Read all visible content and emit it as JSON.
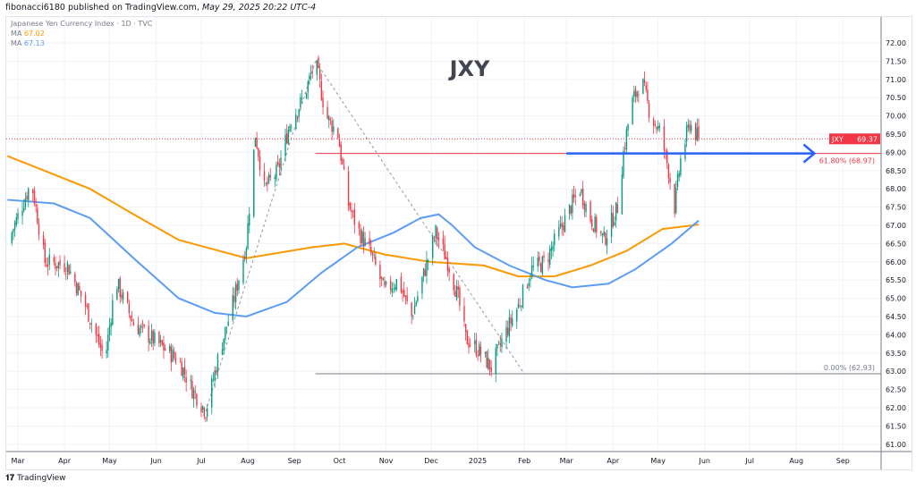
{
  "header": {
    "author": "fibonacci6180",
    "published": "published on TradingView.com,",
    "date": "May 29, 2025 20:22 UTC-4"
  },
  "legend": {
    "symbol_line": "Japanese Yen Currency Index · 1D · TVC",
    "ma1_label": "MA",
    "ma1_value": "67.02",
    "ma2_label": "MA",
    "ma2_value": "67.13"
  },
  "colors": {
    "up": "#089981",
    "down": "#f23645",
    "ma_orange": "#ff9800",
    "ma_blue": "#5b9cf6",
    "arrow": "#2962ff",
    "fib": "#f23645"
  },
  "footer": {
    "brand": "TradingView"
  },
  "chart_data": {
    "type": "candlestick",
    "title": "JXY",
    "time_unit": "days since 2024-03-01",
    "ylim": [
      60.75,
      72.5
    ],
    "yticks": [
      "61.00",
      "61.50",
      "62.00",
      "62.50",
      "63.00",
      "63.50",
      "64.00",
      "64.50",
      "65.00",
      "65.50",
      "66.00",
      "66.50",
      "67.00",
      "67.50",
      "68.00",
      "68.50",
      "69.00",
      "69.50",
      "70.00",
      "70.50",
      "71.00",
      "71.50",
      "72.00"
    ],
    "xticks": [
      {
        "t": 0,
        "label": "Mar"
      },
      {
        "t": 31,
        "label": "Apr"
      },
      {
        "t": 61,
        "label": "May"
      },
      {
        "t": 92,
        "label": "Jun"
      },
      {
        "t": 122,
        "label": "Jul"
      },
      {
        "t": 153,
        "label": "Aug"
      },
      {
        "t": 184,
        "label": "Sep"
      },
      {
        "t": 214,
        "label": "Oct"
      },
      {
        "t": 245,
        "label": "Nov"
      },
      {
        "t": 275,
        "label": "Dec"
      },
      {
        "t": 306,
        "label": "2025"
      },
      {
        "t": 337,
        "label": "Feb"
      },
      {
        "t": 365,
        "label": "Mar"
      },
      {
        "t": 396,
        "label": "Apr"
      },
      {
        "t": 426,
        "label": "May"
      },
      {
        "t": 457,
        "label": "Jun"
      },
      {
        "t": 487,
        "label": "Jul"
      },
      {
        "t": 518,
        "label": "Aug"
      },
      {
        "t": 549,
        "label": "Sep"
      }
    ],
    "price_path": [
      [
        -7,
        66.5
      ],
      [
        9,
        68.2
      ],
      [
        18,
        66.0
      ],
      [
        33,
        65.9
      ],
      [
        45,
        64.8
      ],
      [
        58,
        63.3
      ],
      [
        65,
        65.5
      ],
      [
        77,
        64.3
      ],
      [
        92,
        63.8
      ],
      [
        107,
        63.3
      ],
      [
        116,
        62.5
      ],
      [
        125,
        61.9
      ],
      [
        134,
        63.5
      ],
      [
        144,
        65.0
      ],
      [
        152,
        66.5
      ],
      [
        158,
        69.5
      ],
      [
        164,
        68.0
      ],
      [
        173,
        68.5
      ],
      [
        181,
        69.8
      ],
      [
        190,
        70.5
      ],
      [
        198,
        71.5
      ],
      [
        205,
        70.0
      ],
      [
        213,
        69.5
      ],
      [
        219,
        67.7
      ],
      [
        226,
        66.9
      ],
      [
        235,
        66.2
      ],
      [
        244,
        65.2
      ],
      [
        253,
        65.5
      ],
      [
        262,
        64.5
      ],
      [
        271,
        65.8
      ],
      [
        278,
        66.8
      ],
      [
        286,
        66.0
      ],
      [
        293,
        65.0
      ],
      [
        298,
        63.9
      ],
      [
        306,
        63.6
      ],
      [
        315,
        63.1
      ],
      [
        324,
        64.0
      ],
      [
        333,
        64.8
      ],
      [
        342,
        65.8
      ],
      [
        351,
        66.0
      ],
      [
        360,
        66.8
      ],
      [
        369,
        67.6
      ],
      [
        374,
        68.0
      ],
      [
        381,
        67.2
      ],
      [
        390,
        66.6
      ],
      [
        399,
        67.5
      ],
      [
        403,
        69.0
      ],
      [
        408,
        70.3
      ],
      [
        415,
        71.0
      ],
      [
        421,
        70.0
      ],
      [
        428,
        69.5
      ],
      [
        433,
        68.5
      ],
      [
        437,
        67.5
      ],
      [
        441,
        68.8
      ],
      [
        447,
        69.8
      ],
      [
        453,
        69.37
      ]
    ],
    "ma_orange": [
      [
        -7,
        68.9
      ],
      [
        48,
        68.0
      ],
      [
        77,
        67.3
      ],
      [
        107,
        66.6
      ],
      [
        152,
        66.1
      ],
      [
        196,
        66.4
      ],
      [
        217,
        66.5
      ],
      [
        244,
        66.2
      ],
      [
        274,
        66.0
      ],
      [
        310,
        65.9
      ],
      [
        333,
        65.6
      ],
      [
        357,
        65.6
      ],
      [
        381,
        65.9
      ],
      [
        405,
        66.3
      ],
      [
        429,
        66.9
      ],
      [
        453,
        67.02
      ]
    ],
    "ma_blue": [
      [
        -7,
        67.7
      ],
      [
        24,
        67.6
      ],
      [
        48,
        67.2
      ],
      [
        77,
        66.1
      ],
      [
        107,
        65.0
      ],
      [
        131,
        64.6
      ],
      [
        152,
        64.5
      ],
      [
        179,
        64.9
      ],
      [
        202,
        65.7
      ],
      [
        226,
        66.4
      ],
      [
        250,
        66.8
      ],
      [
        268,
        67.2
      ],
      [
        280,
        67.3
      ],
      [
        289,
        67.0
      ],
      [
        304,
        66.4
      ],
      [
        327,
        65.9
      ],
      [
        351,
        65.5
      ],
      [
        369,
        65.3
      ],
      [
        393,
        65.4
      ],
      [
        411,
        65.8
      ],
      [
        435,
        66.5
      ],
      [
        453,
        67.13
      ]
    ],
    "last_price": {
      "symbol": "JXY",
      "value": "69.37",
      "price": 69.37
    },
    "fib": [
      {
        "label": "61.80% (68.97)",
        "price": 68.97,
        "color": "#f23645"
      },
      {
        "label": "0.00% (62.93)",
        "price": 62.93,
        "color": "#787b86"
      }
    ],
    "fib_anchor_t": 198,
    "trend_lines": [
      [
        [
          125,
          61.9
        ],
        [
          198,
          71.5
        ]
      ],
      [
        [
          198,
          71.5
        ],
        [
          337,
          62.93
        ]
      ]
    ],
    "arrow": {
      "t0": 365,
      "t1": 530,
      "price": 68.97
    }
  }
}
